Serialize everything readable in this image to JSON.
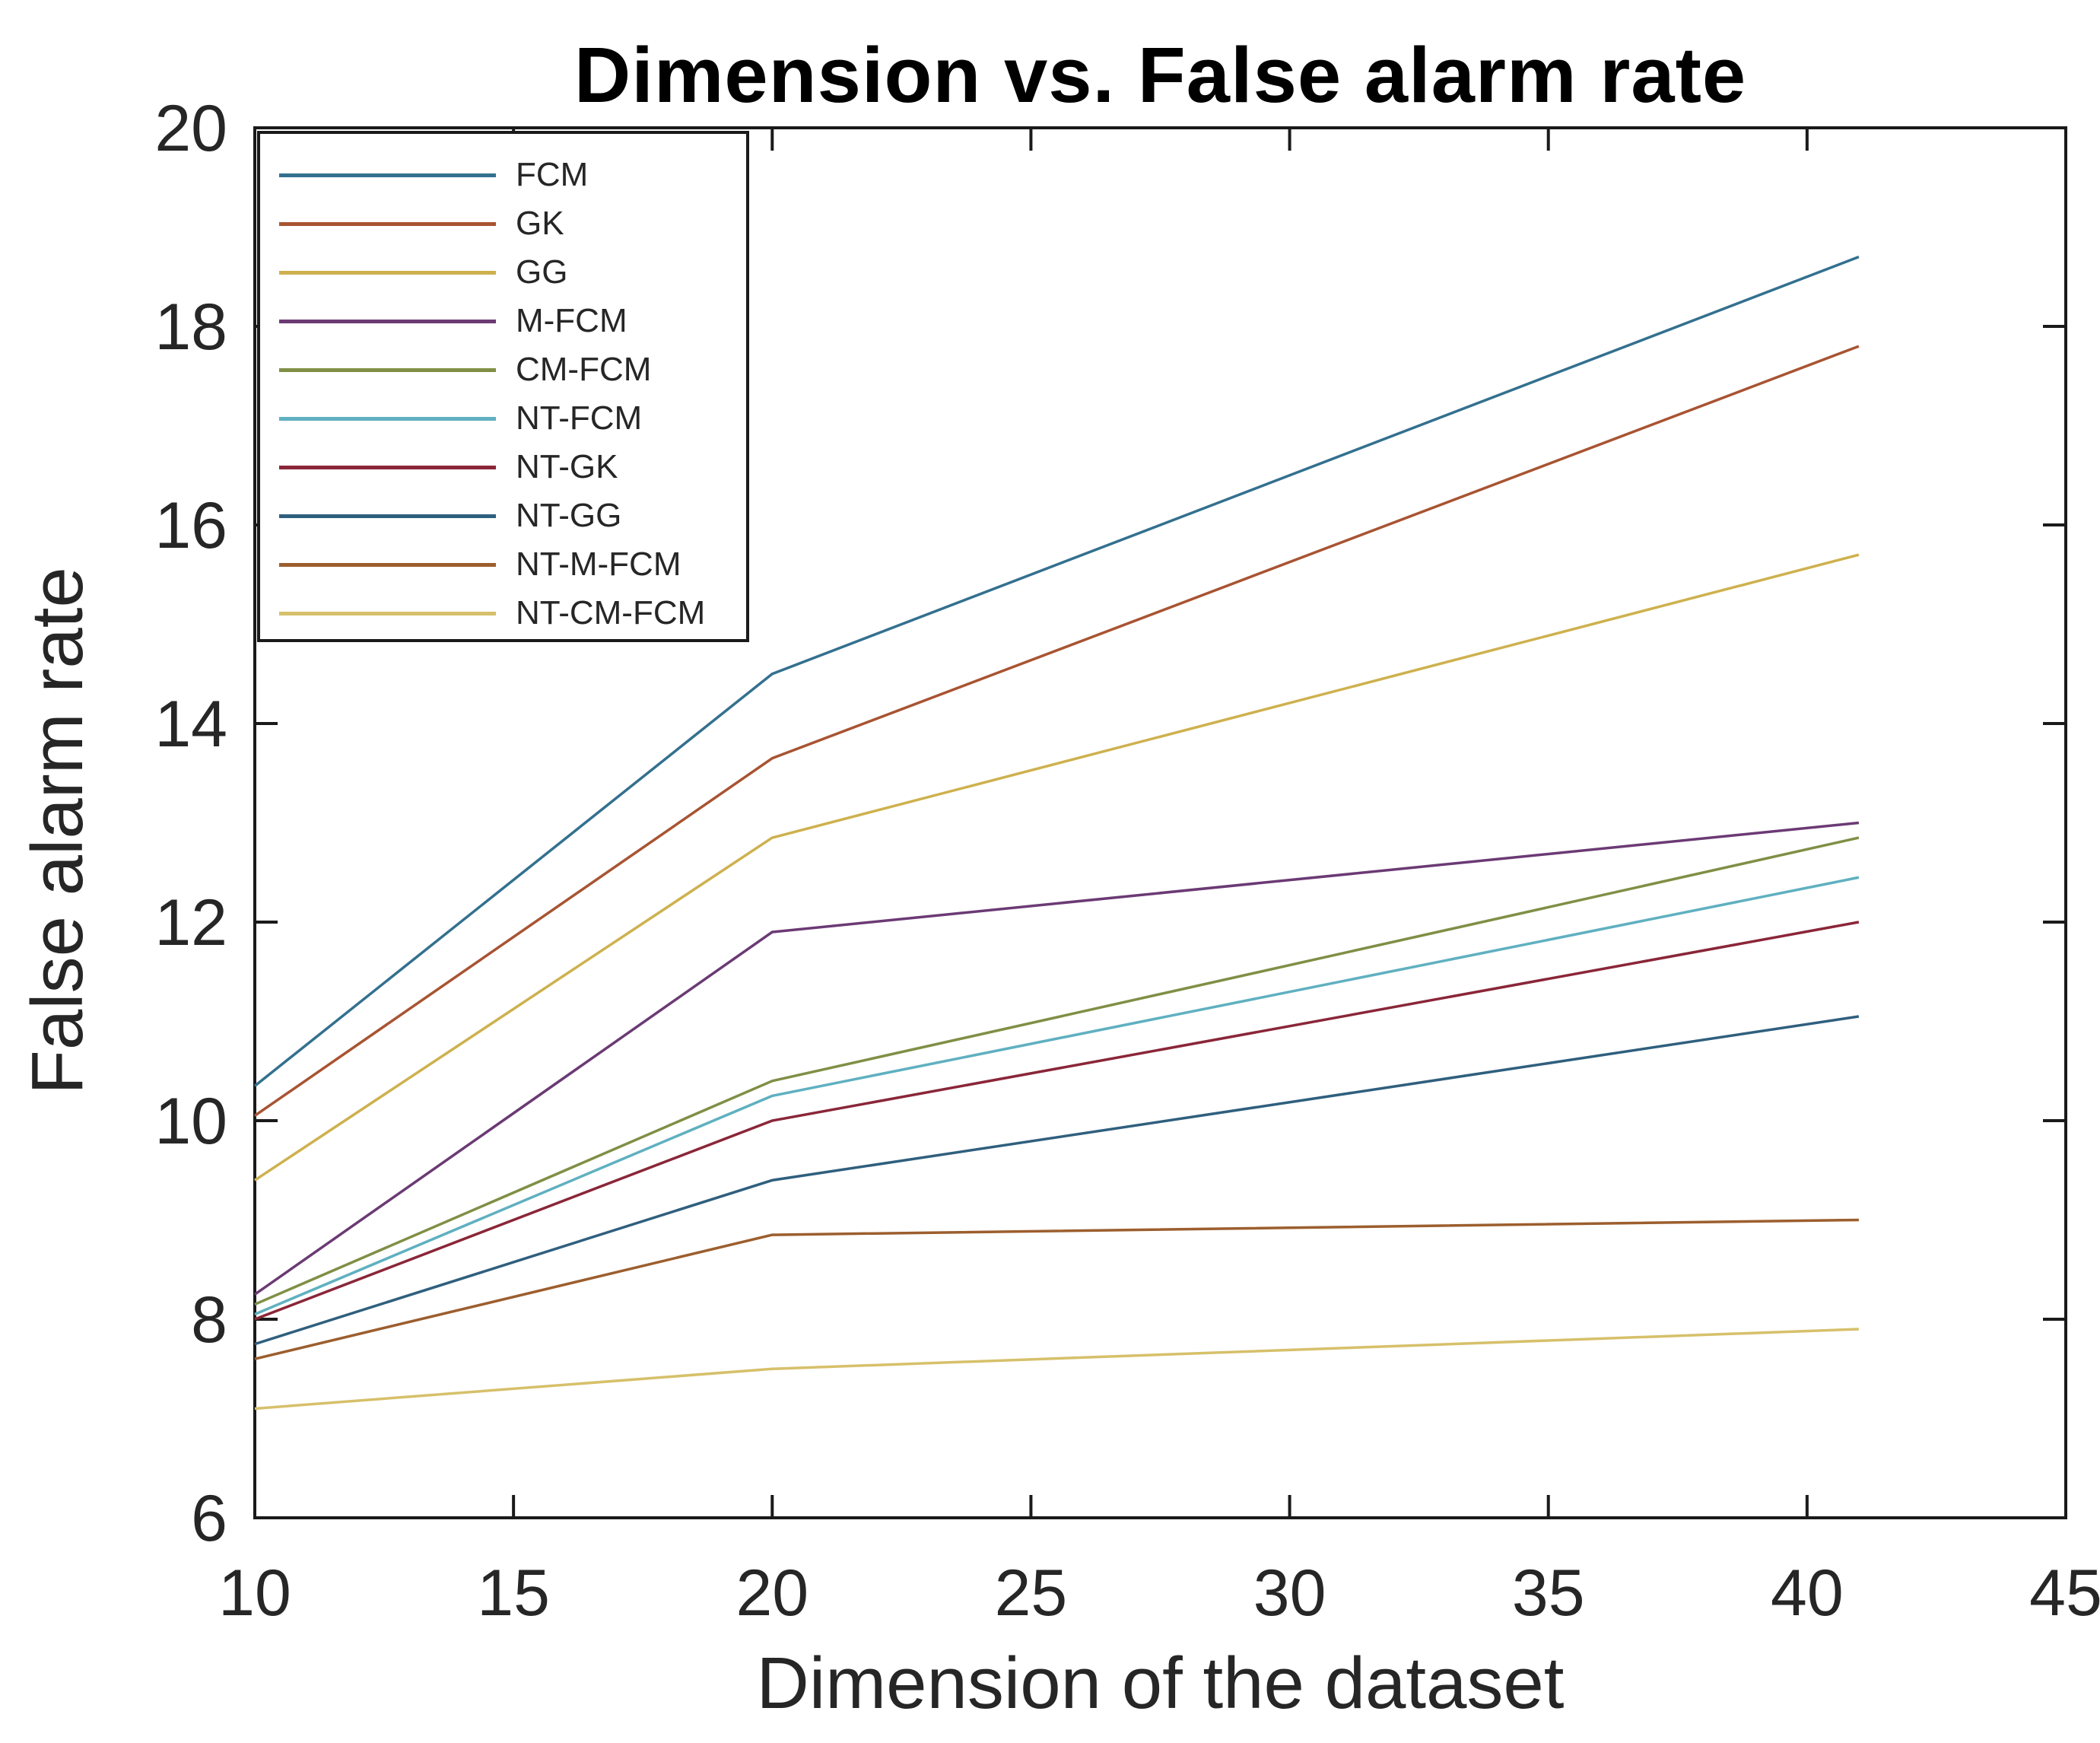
{
  "figure": {
    "title": "Dimension vs. False alarm rate",
    "x_axis_label": "Dimension of the dataset",
    "y_axis_label": "False alarm rate"
  },
  "chart_data": {
    "type": "line",
    "title": "Dimension vs. False alarm rate",
    "xlabel": "Dimension of the dataset",
    "ylabel": "False alarm rate",
    "xlim": [
      10,
      45
    ],
    "ylim": [
      6,
      20
    ],
    "x_ticks": [
      10,
      15,
      20,
      25,
      30,
      35,
      40,
      45
    ],
    "y_ticks": [
      6,
      8,
      10,
      12,
      14,
      16,
      18,
      20
    ],
    "grid": false,
    "legend_position": "top-left",
    "axis_color": "#1a1a1a",
    "tick_label_color": "#262626",
    "x": [
      10,
      20,
      41
    ],
    "series": [
      {
        "name": "FCM",
        "color": "#33708F",
        "values": [
          10.35,
          14.5,
          18.7
        ]
      },
      {
        "name": "GK",
        "color": "#A85432",
        "values": [
          10.05,
          13.65,
          17.8
        ]
      },
      {
        "name": "GG",
        "color": "#CEB14E",
        "values": [
          9.4,
          12.85,
          15.7
        ]
      },
      {
        "name": "M-FCM",
        "color": "#6B3A74",
        "values": [
          8.25,
          11.9,
          13.0
        ]
      },
      {
        "name": "CM-FCM",
        "color": "#7F8F45",
        "values": [
          8.15,
          10.4,
          12.85
        ]
      },
      {
        "name": "NT-FCM",
        "color": "#5FB0C0",
        "values": [
          8.05,
          10.25,
          12.45
        ]
      },
      {
        "name": "NT-GK",
        "color": "#8A2638",
        "values": [
          8.0,
          10.0,
          12.0
        ]
      },
      {
        "name": "NT-GG",
        "color": "#2F5F7E",
        "values": [
          7.75,
          9.4,
          11.05
        ]
      },
      {
        "name": "NT-M-FCM",
        "color": "#9C5E2E",
        "values": [
          7.6,
          8.85,
          9.0
        ]
      },
      {
        "name": "NT-CM-FCM",
        "color": "#D6C06A",
        "values": [
          7.1,
          7.5,
          7.9
        ]
      }
    ]
  }
}
